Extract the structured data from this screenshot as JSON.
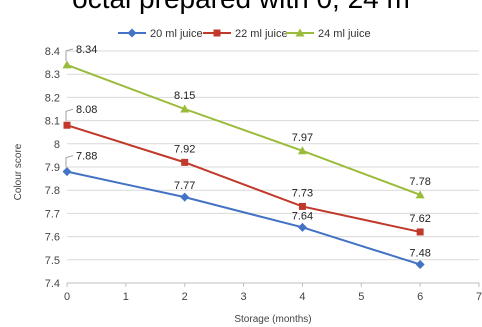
{
  "clipped_heading": "octal prepared with 0, 24 m",
  "chart_data": {
    "type": "line",
    "title": "",
    "xlabel": "Storage (months)",
    "ylabel": "Colour score",
    "xlim": [
      0,
      7
    ],
    "ylim": [
      7.4,
      8.4
    ],
    "xticks": [
      "0",
      "1",
      "2",
      "3",
      "4",
      "5",
      "6",
      "7"
    ],
    "yticks": [
      "7.4",
      "7.5",
      "7.6",
      "7.7",
      "7.8",
      "7.9",
      "8",
      "8.1",
      "8.2",
      "8.3",
      "8.4"
    ],
    "grid": true,
    "legend_position": "top",
    "x": [
      0,
      2,
      4,
      6
    ],
    "series": [
      {
        "name": "20 ml juice",
        "values": [
          7.88,
          7.77,
          7.64,
          7.48
        ],
        "labels": [
          "7.88",
          "7.77",
          "7.64",
          "7.48"
        ],
        "color": "#4472C4",
        "marker": "diamond"
      },
      {
        "name": "22 ml juice",
        "values": [
          8.08,
          7.92,
          7.73,
          7.62
        ],
        "labels": [
          "8.08",
          "7.92",
          "7.73",
          "7.62"
        ],
        "color": "#C0392B",
        "marker": "square"
      },
      {
        "name": "24 ml juice",
        "values": [
          8.34,
          8.15,
          7.97,
          7.78
        ],
        "labels": [
          "8.34",
          "8.15",
          "7.97",
          "7.78"
        ],
        "color": "#9BBB3B",
        "marker": "triangle"
      }
    ]
  }
}
